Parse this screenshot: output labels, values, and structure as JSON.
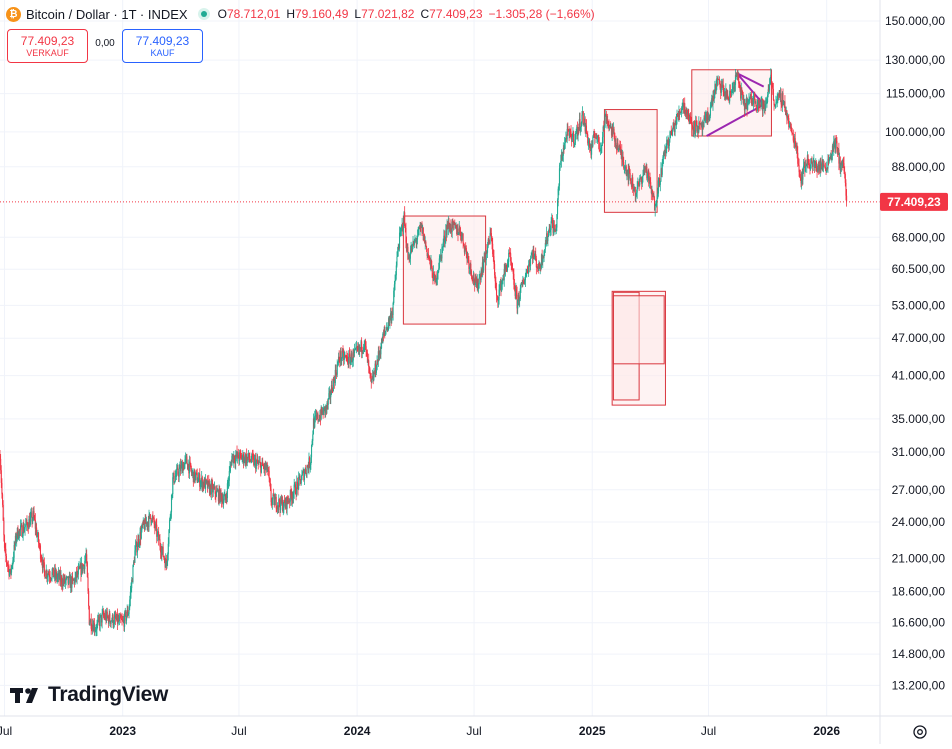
{
  "header": {
    "symbol_title": "Bitcoin / Dollar · 1T · INDEX",
    "coin_glyph": "₿",
    "ohlc": [
      {
        "key": "O",
        "value": "78.712,01"
      },
      {
        "key": "H",
        "value": "79.160,49"
      },
      {
        "key": "L",
        "value": "77.021,82"
      },
      {
        "key": "C",
        "value": "77.409,23"
      }
    ],
    "change": "−1.305,28 (−1,66%)"
  },
  "trade": {
    "sell_price": "77.409,23",
    "sell_label": "VERKAUF",
    "spread": "0,00",
    "buy_price": "77.409,23",
    "buy_label": "KAUF"
  },
  "branding": {
    "logo_text": "TradingView"
  },
  "icons": {
    "settings": "gear-icon",
    "live": "live-dot-icon",
    "coin": "bitcoin-icon"
  },
  "colors": {
    "up": "#22ab94",
    "down": "#f23645",
    "box_stroke": "#d9363e",
    "box_fill": "#fde9ea",
    "triangle": "#9c27b0",
    "grid": "#f0f3fa",
    "price_label": "#f23645"
  },
  "chart_data": {
    "type": "candlestick",
    "title": "Bitcoin / Dollar · 1T · INDEX",
    "y_scale": "log",
    "ylim": [
      11800,
      162000
    ],
    "xlim": [
      "2022-06-24",
      "2026-03-25"
    ],
    "y_ticks": [
      {
        "v": 13200,
        "t": "13.200,00"
      },
      {
        "v": 14800,
        "t": "14.800,00"
      },
      {
        "v": 16600,
        "t": "16.600,00"
      },
      {
        "v": 18600,
        "t": "18.600,00"
      },
      {
        "v": 21000,
        "t": "21.000,00"
      },
      {
        "v": 24000,
        "t": "24.000,00"
      },
      {
        "v": 27000,
        "t": "27.000,00"
      },
      {
        "v": 31000,
        "t": "31.000,00"
      },
      {
        "v": 35000,
        "t": "35.000,00"
      },
      {
        "v": 41000,
        "t": "41.000,00"
      },
      {
        "v": 47000,
        "t": "47.000,00"
      },
      {
        "v": 53000,
        "t": "53.000,00"
      },
      {
        "v": 60500,
        "t": "60.500,00"
      },
      {
        "v": 68000,
        "t": "68.000,00"
      },
      {
        "v": 88000,
        "t": "88.000,00"
      },
      {
        "v": 100000,
        "t": "100.000,00"
      },
      {
        "v": 115000,
        "t": "115.000,00"
      },
      {
        "v": 130000,
        "t": "130.000,00"
      },
      {
        "v": 150000,
        "t": "150.000,00"
      }
    ],
    "x_ticks": [
      {
        "d": "2022-07-01",
        "t": "Jul"
      },
      {
        "d": "2023-01-01",
        "t": "2023"
      },
      {
        "d": "2023-07-01",
        "t": "Jul"
      },
      {
        "d": "2024-01-01",
        "t": "2024"
      },
      {
        "d": "2024-07-01",
        "t": "Jul"
      },
      {
        "d": "2025-01-01",
        "t": "2025"
      },
      {
        "d": "2025-07-01",
        "t": "Jul"
      },
      {
        "d": "2026-01-01",
        "t": "2026"
      }
    ],
    "last_price": {
      "value": 77409.23,
      "label": "77.409,23"
    },
    "close_path": [
      [
        "2022-06-24",
        31000
      ],
      [
        "2022-07-01",
        21500
      ],
      [
        "2022-07-10",
        19800
      ],
      [
        "2022-07-20",
        23000
      ],
      [
        "2022-08-01",
        23500
      ],
      [
        "2022-08-15",
        24500
      ],
      [
        "2022-09-01",
        20000
      ],
      [
        "2022-09-15",
        19800
      ],
      [
        "2022-10-01",
        19300
      ],
      [
        "2022-10-15",
        19200
      ],
      [
        "2022-11-01",
        20500
      ],
      [
        "2022-11-05",
        21200
      ],
      [
        "2022-11-10",
        16800
      ],
      [
        "2022-11-20",
        16300
      ],
      [
        "2022-12-01",
        17000
      ],
      [
        "2022-12-15",
        16800
      ],
      [
        "2023-01-01",
        16600
      ],
      [
        "2023-01-10",
        17300
      ],
      [
        "2023-01-20",
        21500
      ],
      [
        "2023-02-01",
        23500
      ],
      [
        "2023-02-15",
        24500
      ],
      [
        "2023-03-10",
        20500
      ],
      [
        "2023-03-20",
        28000
      ],
      [
        "2023-04-10",
        30000
      ],
      [
        "2023-04-20",
        28500
      ],
      [
        "2023-05-10",
        27500
      ],
      [
        "2023-06-10",
        26000
      ],
      [
        "2023-06-20",
        30500
      ],
      [
        "2023-07-15",
        30300
      ],
      [
        "2023-08-15",
        29000
      ],
      [
        "2023-08-20",
        26000
      ],
      [
        "2023-09-10",
        25500
      ],
      [
        "2023-10-01",
        27500
      ],
      [
        "2023-10-20",
        30000
      ],
      [
        "2023-10-25",
        34500
      ],
      [
        "2023-11-15",
        36500
      ],
      [
        "2023-12-05",
        44000
      ],
      [
        "2023-12-20",
        43500
      ],
      [
        "2024-01-05",
        45000
      ],
      [
        "2024-01-12",
        46500
      ],
      [
        "2024-01-23",
        39500
      ],
      [
        "2024-02-10",
        47000
      ],
      [
        "2024-02-25",
        52000
      ],
      [
        "2024-03-05",
        66000
      ],
      [
        "2024-03-14",
        73000
      ],
      [
        "2024-03-20",
        63000
      ],
      [
        "2024-04-10",
        70500
      ],
      [
        "2024-04-20",
        64000
      ],
      [
        "2024-05-01",
        57500
      ],
      [
        "2024-05-20",
        71000
      ],
      [
        "2024-06-10",
        69500
      ],
      [
        "2024-06-25",
        61000
      ],
      [
        "2024-07-05",
        56500
      ],
      [
        "2024-07-28",
        69000
      ],
      [
        "2024-08-05",
        54000
      ],
      [
        "2024-08-25",
        63500
      ],
      [
        "2024-09-06",
        53500
      ],
      [
        "2024-09-30",
        64500
      ],
      [
        "2024-10-10",
        60500
      ],
      [
        "2024-10-29",
        72000
      ],
      [
        "2024-11-05",
        69000
      ],
      [
        "2024-11-12",
        89000
      ],
      [
        "2024-11-22",
        99000
      ],
      [
        "2024-12-05",
        98000
      ],
      [
        "2024-12-17",
        106000
      ],
      [
        "2024-12-30",
        93000
      ],
      [
        "2025-01-06",
        100000
      ],
      [
        "2025-01-13",
        94000
      ],
      [
        "2025-01-22",
        106000
      ],
      [
        "2025-02-01",
        100000
      ],
      [
        "2025-02-26",
        86000
      ],
      [
        "2025-03-10",
        80000
      ],
      [
        "2025-03-25",
        88000
      ],
      [
        "2025-04-08",
        76500
      ],
      [
        "2025-04-25",
        94000
      ],
      [
        "2025-05-10",
        103000
      ],
      [
        "2025-05-22",
        111000
      ],
      [
        "2025-06-05",
        103000
      ],
      [
        "2025-06-20",
        101000
      ],
      [
        "2025-07-01",
        106000
      ],
      [
        "2025-07-14",
        120000
      ],
      [
        "2025-07-25",
        116000
      ],
      [
        "2025-08-02",
        113000
      ],
      [
        "2025-08-14",
        123000
      ],
      [
        "2025-08-25",
        110000
      ],
      [
        "2025-09-10",
        113000
      ],
      [
        "2025-09-28",
        109000
      ],
      [
        "2025-10-06",
        124000
      ],
      [
        "2025-10-10",
        112000
      ],
      [
        "2025-10-25",
        113000
      ],
      [
        "2025-11-04",
        102000
      ],
      [
        "2025-11-15",
        95000
      ],
      [
        "2025-11-21",
        84000
      ],
      [
        "2025-12-01",
        90000
      ],
      [
        "2025-12-15",
        88000
      ],
      [
        "2026-01-01",
        88500
      ],
      [
        "2026-01-14",
        96500
      ],
      [
        "2026-01-22",
        89000
      ],
      [
        "2026-01-28",
        88000
      ],
      [
        "2026-02-01",
        77409
      ]
    ],
    "annotations": [
      {
        "type": "rectangle",
        "from": "2024-03-13",
        "to": "2024-07-19",
        "high": 73500,
        "low": 49500
      },
      {
        "type": "rectangle",
        "from": "2025-01-20",
        "to": "2025-04-12",
        "high": 108500,
        "low": 74500
      },
      {
        "type": "rectangle",
        "from": "2025-02-01",
        "to": "2025-04-25",
        "high": 55800,
        "low": 36800
      },
      {
        "type": "rectangle",
        "from": "2025-02-03",
        "to": "2025-03-15",
        "high": 55600,
        "low": 37500
      },
      {
        "type": "rectangle",
        "from": "2025-02-03",
        "to": "2025-04-23",
        "high": 54900,
        "low": 42800
      },
      {
        "type": "rectangle",
        "from": "2025-06-05",
        "to": "2025-10-07",
        "high": 125500,
        "low": 98500
      },
      {
        "type": "triangle",
        "points": [
          [
            "2025-06-28",
            98500
          ],
          [
            "2025-09-25",
            110500
          ],
          [
            "2025-08-14",
            124000
          ],
          [
            "2025-09-25",
            118000
          ]
        ]
      }
    ]
  }
}
